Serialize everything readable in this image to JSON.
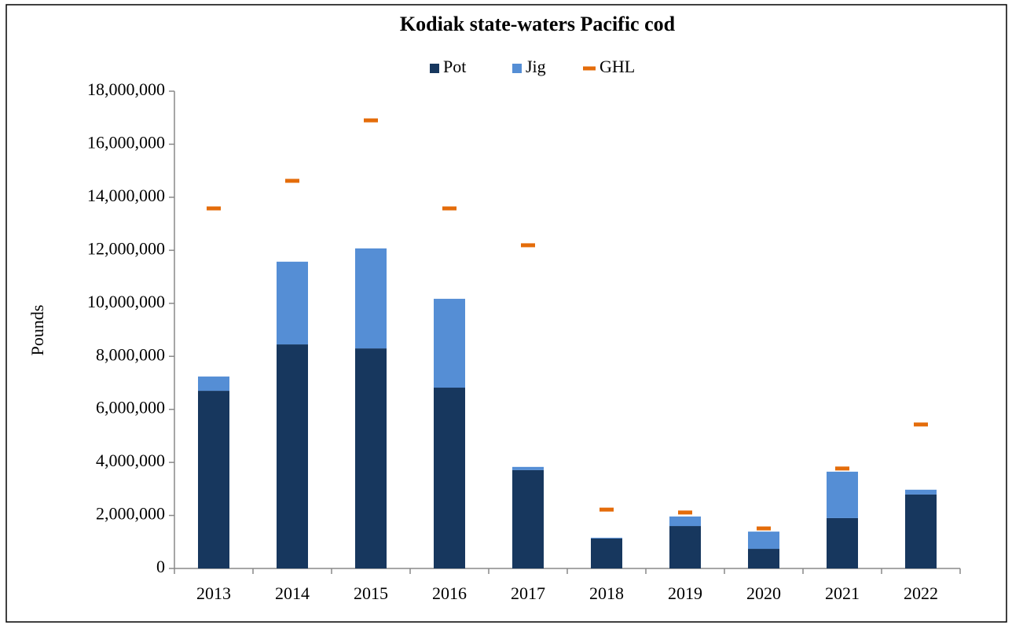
{
  "chart_data": {
    "type": "bar",
    "stacked": true,
    "title": "Kodiak state-waters Pacific cod",
    "ylabel": "Pounds",
    "categories": [
      "2013",
      "2014",
      "2015",
      "2016",
      "2017",
      "2018",
      "2019",
      "2020",
      "2021",
      "2022"
    ],
    "series": [
      {
        "name": "Pot",
        "type": "bar",
        "color": "#17375e",
        "values": [
          6700000,
          8450000,
          8300000,
          6820000,
          3710000,
          1130000,
          1600000,
          740000,
          1900000,
          2790000
        ]
      },
      {
        "name": "Jig",
        "type": "bar",
        "color": "#558ed5",
        "values": [
          540000,
          3120000,
          3770000,
          3350000,
          120000,
          30000,
          360000,
          650000,
          1750000,
          180000
        ]
      },
      {
        "name": "GHL",
        "type": "marker",
        "color": "#e46c0a",
        "values": [
          13580000,
          14620000,
          16900000,
          13580000,
          12190000,
          2220000,
          2110000,
          1510000,
          3770000,
          5430000
        ]
      }
    ],
    "ylim": [
      0,
      18000000
    ],
    "yticks": [
      {
        "value": 0,
        "label": "0"
      },
      {
        "value": 2000000,
        "label": "2,000,000"
      },
      {
        "value": 4000000,
        "label": "4,000,000"
      },
      {
        "value": 6000000,
        "label": "6,000,000"
      },
      {
        "value": 8000000,
        "label": "8,000,000"
      },
      {
        "value": 10000000,
        "label": "10,000,000"
      },
      {
        "value": 12000000,
        "label": "12,000,000"
      },
      {
        "value": 14000000,
        "label": "14,000,000"
      },
      {
        "value": 16000000,
        "label": "16,000,000"
      },
      {
        "value": 18000000,
        "label": "18,000,000"
      }
    ],
    "grid": false,
    "legend": "top"
  }
}
